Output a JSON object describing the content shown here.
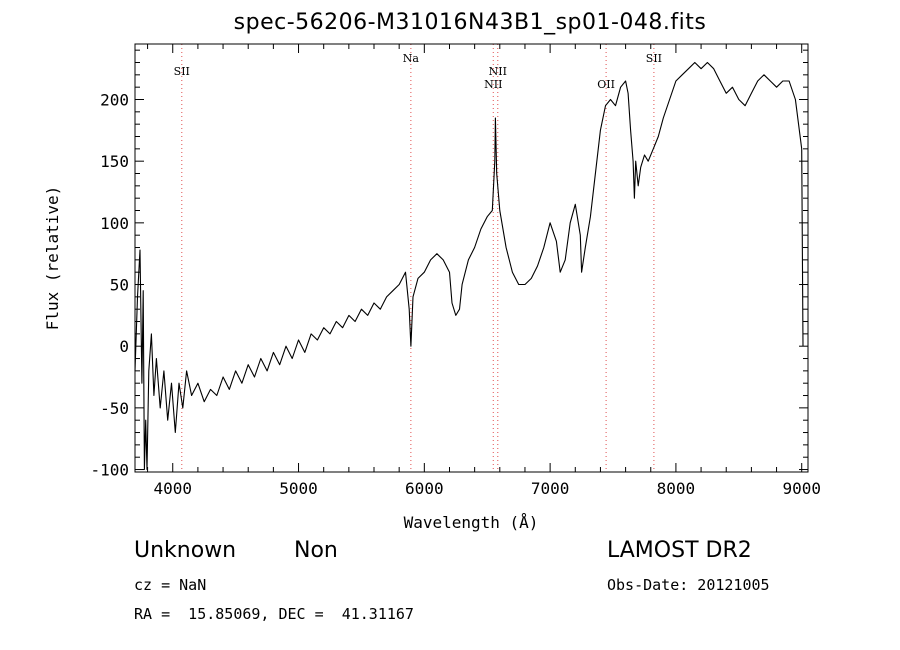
{
  "header": {
    "filename": "spec-56206-M31016N43B1_sp01-048.fits"
  },
  "footer": {
    "object_type": "Unknown",
    "object_subtype": "Non",
    "survey": "LAMOST DR2",
    "redshift": "cz = NaN",
    "obs_date": "Obs-Date: 20121005",
    "coordinates": "RA =  15.85069, DEC =  41.31167"
  },
  "chart_data": {
    "type": "line",
    "title": "spec-56206-M31016N43B1_sp01-048.fits",
    "xlabel": "Wavelength (Å)",
    "ylabel": "Flux (relative)",
    "xlim": [
      3700,
      9050
    ],
    "ylim": [
      -102,
      245
    ],
    "xticks": [
      4000,
      5000,
      6000,
      7000,
      8000,
      9000
    ],
    "yticks": [
      -100,
      -50,
      0,
      50,
      100,
      150,
      200
    ],
    "line_color": "#000000",
    "marker_color": "#e05050",
    "lines": [
      {
        "label": "SII",
        "wavelength": 4072,
        "label_tier": 1
      },
      {
        "label": "Na",
        "wavelength": 5893,
        "label_tier": 0
      },
      {
        "label": "NII",
        "wavelength": 6548,
        "label_tier": 2
      },
      {
        "label": "NII",
        "wavelength": 6584,
        "label_tier": 1
      },
      {
        "label": "OII",
        "wavelength": 7445,
        "label_tier": 2
      },
      {
        "label": "SII",
        "wavelength": 7825,
        "label_tier": 0
      }
    ],
    "series": [
      {
        "points": [
          [
            3700,
            -20
          ],
          [
            3720,
            40
          ],
          [
            3740,
            78
          ],
          [
            3755,
            -30
          ],
          [
            3765,
            45
          ],
          [
            3775,
            -100
          ],
          [
            3785,
            -60
          ],
          [
            3795,
            -100
          ],
          [
            3810,
            -20
          ],
          [
            3830,
            10
          ],
          [
            3850,
            -40
          ],
          [
            3870,
            -10
          ],
          [
            3900,
            -50
          ],
          [
            3930,
            -20
          ],
          [
            3960,
            -60
          ],
          [
            3990,
            -30
          ],
          [
            4020,
            -70
          ],
          [
            4050,
            -30
          ],
          [
            4080,
            -50
          ],
          [
            4110,
            -20
          ],
          [
            4150,
            -40
          ],
          [
            4200,
            -30
          ],
          [
            4250,
            -45
          ],
          [
            4300,
            -35
          ],
          [
            4350,
            -40
          ],
          [
            4400,
            -25
          ],
          [
            4450,
            -35
          ],
          [
            4500,
            -20
          ],
          [
            4550,
            -30
          ],
          [
            4600,
            -15
          ],
          [
            4650,
            -25
          ],
          [
            4700,
            -10
          ],
          [
            4750,
            -20
          ],
          [
            4800,
            -5
          ],
          [
            4850,
            -15
          ],
          [
            4900,
            0
          ],
          [
            4950,
            -10
          ],
          [
            5000,
            5
          ],
          [
            5050,
            -5
          ],
          [
            5100,
            10
          ],
          [
            5150,
            5
          ],
          [
            5200,
            15
          ],
          [
            5250,
            10
          ],
          [
            5300,
            20
          ],
          [
            5350,
            15
          ],
          [
            5400,
            25
          ],
          [
            5450,
            20
          ],
          [
            5500,
            30
          ],
          [
            5550,
            25
          ],
          [
            5600,
            35
          ],
          [
            5650,
            30
          ],
          [
            5700,
            40
          ],
          [
            5750,
            45
          ],
          [
            5800,
            50
          ],
          [
            5850,
            60
          ],
          [
            5880,
            30
          ],
          [
            5893,
            0
          ],
          [
            5910,
            40
          ],
          [
            5950,
            55
          ],
          [
            6000,
            60
          ],
          [
            6050,
            70
          ],
          [
            6100,
            75
          ],
          [
            6150,
            70
          ],
          [
            6200,
            60
          ],
          [
            6220,
            35
          ],
          [
            6250,
            25
          ],
          [
            6280,
            30
          ],
          [
            6300,
            50
          ],
          [
            6350,
            70
          ],
          [
            6400,
            80
          ],
          [
            6450,
            95
          ],
          [
            6500,
            105
          ],
          [
            6540,
            110
          ],
          [
            6560,
            150
          ],
          [
            6565,
            185
          ],
          [
            6575,
            140
          ],
          [
            6600,
            110
          ],
          [
            6650,
            80
          ],
          [
            6700,
            60
          ],
          [
            6750,
            50
          ],
          [
            6800,
            50
          ],
          [
            6850,
            55
          ],
          [
            6900,
            65
          ],
          [
            6950,
            80
          ],
          [
            7000,
            100
          ],
          [
            7050,
            85
          ],
          [
            7080,
            60
          ],
          [
            7120,
            70
          ],
          [
            7160,
            100
          ],
          [
            7200,
            115
          ],
          [
            7240,
            90
          ],
          [
            7250,
            60
          ],
          [
            7280,
            80
          ],
          [
            7320,
            105
          ],
          [
            7360,
            140
          ],
          [
            7400,
            175
          ],
          [
            7440,
            195
          ],
          [
            7480,
            200
          ],
          [
            7520,
            195
          ],
          [
            7560,
            210
          ],
          [
            7600,
            215
          ],
          [
            7620,
            205
          ],
          [
            7640,
            175
          ],
          [
            7660,
            150
          ],
          [
            7670,
            120
          ],
          [
            7680,
            150
          ],
          [
            7700,
            130
          ],
          [
            7720,
            145
          ],
          [
            7750,
            155
          ],
          [
            7780,
            150
          ],
          [
            7820,
            160
          ],
          [
            7860,
            170
          ],
          [
            7900,
            185
          ],
          [
            7950,
            200
          ],
          [
            8000,
            215
          ],
          [
            8050,
            220
          ],
          [
            8100,
            225
          ],
          [
            8150,
            230
          ],
          [
            8200,
            225
          ],
          [
            8250,
            230
          ],
          [
            8300,
            225
          ],
          [
            8350,
            215
          ],
          [
            8400,
            205
          ],
          [
            8450,
            210
          ],
          [
            8500,
            200
          ],
          [
            8550,
            195
          ],
          [
            8600,
            205
          ],
          [
            8650,
            215
          ],
          [
            8700,
            220
          ],
          [
            8750,
            215
          ],
          [
            8800,
            210
          ],
          [
            8850,
            215
          ],
          [
            8900,
            215
          ],
          [
            8950,
            200
          ],
          [
            9000,
            160
          ],
          [
            9010,
            0
          ]
        ]
      }
    ]
  }
}
